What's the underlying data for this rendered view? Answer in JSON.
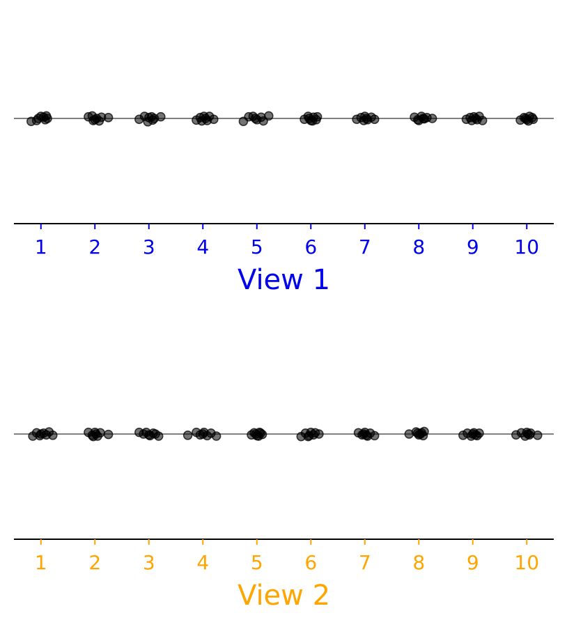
{
  "chart_data": [
    {
      "type": "scatter",
      "xlabel": "View 1",
      "tick_labels": [
        "1",
        "2",
        "3",
        "4",
        "5",
        "6",
        "7",
        "8",
        "9",
        "10"
      ],
      "xlim": [
        0.5,
        10.5
      ],
      "grid": false,
      "color": "#0000ee",
      "baseline_color": "#808080",
      "marker_color": "#000000",
      "points": [
        {
          "x": 0.95,
          "y": 0.0
        },
        {
          "x": 1.05,
          "y": 0.03
        },
        {
          "x": 1.1,
          "y": 0.06
        },
        {
          "x": 0.82,
          "y": -0.07
        },
        {
          "x": 0.92,
          "y": -0.05
        },
        {
          "x": 1.0,
          "y": 0.05
        },
        {
          "x": 1.08,
          "y": -0.03
        },
        {
          "x": 1.12,
          "y": 0.0
        },
        {
          "x": 1.88,
          "y": 0.04
        },
        {
          "x": 1.95,
          "y": 0.06
        },
        {
          "x": 2.0,
          "y": -0.03
        },
        {
          "x": 2.08,
          "y": -0.06
        },
        {
          "x": 2.12,
          "y": 0.03
        },
        {
          "x": 2.25,
          "y": 0.02
        },
        {
          "x": 2.03,
          "y": 0.0
        },
        {
          "x": 1.97,
          "y": -0.05
        },
        {
          "x": 2.82,
          "y": -0.02
        },
        {
          "x": 2.92,
          "y": 0.05
        },
        {
          "x": 2.98,
          "y": -0.08
        },
        {
          "x": 3.05,
          "y": 0.04
        },
        {
          "x": 3.1,
          "y": 0.0
        },
        {
          "x": 3.22,
          "y": 0.04
        },
        {
          "x": 3.0,
          "y": 0.02
        },
        {
          "x": 3.07,
          "y": -0.04
        },
        {
          "x": 3.88,
          "y": -0.04
        },
        {
          "x": 3.95,
          "y": 0.02
        },
        {
          "x": 4.02,
          "y": 0.05
        },
        {
          "x": 4.08,
          "y": -0.05
        },
        {
          "x": 4.12,
          "y": 0.05
        },
        {
          "x": 4.2,
          "y": -0.02
        },
        {
          "x": 3.98,
          "y": -0.06
        },
        {
          "x": 4.05,
          "y": 0.0
        },
        {
          "x": 4.75,
          "y": -0.07
        },
        {
          "x": 4.85,
          "y": 0.04
        },
        {
          "x": 4.93,
          "y": 0.05
        },
        {
          "x": 5.0,
          "y": -0.03
        },
        {
          "x": 5.08,
          "y": 0.03
        },
        {
          "x": 5.12,
          "y": -0.06
        },
        {
          "x": 5.22,
          "y": 0.06
        },
        {
          "x": 4.97,
          "y": 0.0
        },
        {
          "x": 5.88,
          "y": -0.02
        },
        {
          "x": 5.95,
          "y": 0.05
        },
        {
          "x": 6.0,
          "y": -0.05
        },
        {
          "x": 6.05,
          "y": 0.03
        },
        {
          "x": 6.1,
          "y": -0.03
        },
        {
          "x": 6.12,
          "y": 0.04
        },
        {
          "x": 5.97,
          "y": 0.0
        },
        {
          "x": 6.03,
          "y": -0.06
        },
        {
          "x": 6.85,
          "y": -0.02
        },
        {
          "x": 6.93,
          "y": 0.02
        },
        {
          "x": 7.0,
          "y": 0.05
        },
        {
          "x": 7.05,
          "y": -0.03
        },
        {
          "x": 7.12,
          "y": 0.03
        },
        {
          "x": 7.18,
          "y": -0.02
        },
        {
          "x": 6.98,
          "y": -0.05
        },
        {
          "x": 7.03,
          "y": 0.0
        },
        {
          "x": 7.92,
          "y": 0.03
        },
        {
          "x": 7.98,
          "y": -0.03
        },
        {
          "x": 8.05,
          "y": 0.05
        },
        {
          "x": 8.1,
          "y": -0.01
        },
        {
          "x": 8.15,
          "y": 0.02
        },
        {
          "x": 8.25,
          "y": 0.0
        },
        {
          "x": 8.0,
          "y": -0.05
        },
        {
          "x": 8.08,
          "y": 0.0
        },
        {
          "x": 8.88,
          "y": -0.02
        },
        {
          "x": 8.95,
          "y": 0.02
        },
        {
          "x": 9.02,
          "y": 0.04
        },
        {
          "x": 9.08,
          "y": -0.03
        },
        {
          "x": 9.12,
          "y": 0.05
        },
        {
          "x": 9.18,
          "y": -0.05
        },
        {
          "x": 8.98,
          "y": -0.05
        },
        {
          "x": 9.05,
          "y": 0.0
        },
        {
          "x": 9.88,
          "y": -0.04
        },
        {
          "x": 9.95,
          "y": 0.02
        },
        {
          "x": 10.0,
          "y": -0.03
        },
        {
          "x": 10.05,
          "y": 0.05
        },
        {
          "x": 10.1,
          "y": 0.02
        },
        {
          "x": 10.12,
          "y": -0.02
        },
        {
          "x": 9.98,
          "y": 0.0
        },
        {
          "x": 10.03,
          "y": -0.06
        }
      ]
    },
    {
      "type": "scatter",
      "xlabel": "View 2",
      "tick_labels": [
        "1",
        "2",
        "3",
        "4",
        "5",
        "6",
        "7",
        "8",
        "9",
        "10"
      ],
      "xlim": [
        0.5,
        10.5
      ],
      "grid": false,
      "color": "#ffa500",
      "baseline_color": "#808080",
      "marker_color": "#000000",
      "points": [
        {
          "x": 0.85,
          "y": -0.05
        },
        {
          "x": 0.92,
          "y": 0.03
        },
        {
          "x": 0.98,
          "y": -0.04
        },
        {
          "x": 1.05,
          "y": 0.02
        },
        {
          "x": 1.1,
          "y": -0.02
        },
        {
          "x": 1.15,
          "y": 0.05
        },
        {
          "x": 1.22,
          "y": -0.03
        },
        {
          "x": 1.0,
          "y": 0.0
        },
        {
          "x": 1.88,
          "y": 0.04
        },
        {
          "x": 1.95,
          "y": -0.03
        },
        {
          "x": 2.0,
          "y": 0.04
        },
        {
          "x": 2.05,
          "y": -0.05
        },
        {
          "x": 2.1,
          "y": 0.03
        },
        {
          "x": 2.25,
          "y": -0.01
        },
        {
          "x": 2.02,
          "y": 0.0
        },
        {
          "x": 1.97,
          "y": -0.06
        },
        {
          "x": 2.82,
          "y": 0.04
        },
        {
          "x": 2.9,
          "y": 0.0
        },
        {
          "x": 2.95,
          "y": 0.04
        },
        {
          "x": 3.02,
          "y": -0.04
        },
        {
          "x": 3.08,
          "y": 0.02
        },
        {
          "x": 3.18,
          "y": -0.05
        },
        {
          "x": 3.0,
          "y": -0.02
        },
        {
          "x": 3.12,
          "y": 0.0
        },
        {
          "x": 3.72,
          "y": -0.03
        },
        {
          "x": 3.88,
          "y": 0.04
        },
        {
          "x": 3.95,
          "y": -0.02
        },
        {
          "x": 4.02,
          "y": 0.04
        },
        {
          "x": 4.08,
          "y": -0.04
        },
        {
          "x": 4.15,
          "y": 0.02
        },
        {
          "x": 4.25,
          "y": -0.05
        },
        {
          "x": 4.0,
          "y": 0.0
        },
        {
          "x": 4.9,
          "y": -0.02
        },
        {
          "x": 4.95,
          "y": 0.03
        },
        {
          "x": 5.0,
          "y": -0.04
        },
        {
          "x": 5.05,
          "y": 0.04
        },
        {
          "x": 5.1,
          "y": -0.01
        },
        {
          "x": 4.98,
          "y": 0.0
        },
        {
          "x": 5.03,
          "y": -0.05
        },
        {
          "x": 5.07,
          "y": 0.02
        },
        {
          "x": 5.82,
          "y": -0.06
        },
        {
          "x": 5.9,
          "y": 0.02
        },
        {
          "x": 5.97,
          "y": -0.04
        },
        {
          "x": 6.0,
          "y": 0.04
        },
        {
          "x": 6.05,
          "y": -0.02
        },
        {
          "x": 6.15,
          "y": 0.0
        },
        {
          "x": 6.08,
          "y": 0.03
        },
        {
          "x": 5.95,
          "y": -0.06
        },
        {
          "x": 6.88,
          "y": 0.03
        },
        {
          "x": 6.95,
          "y": -0.02
        },
        {
          "x": 7.0,
          "y": 0.04
        },
        {
          "x": 7.05,
          "y": -0.05
        },
        {
          "x": 7.1,
          "y": 0.02
        },
        {
          "x": 7.18,
          "y": -0.04
        },
        {
          "x": 6.98,
          "y": 0.0
        },
        {
          "x": 7.03,
          "y": -0.03
        },
        {
          "x": 7.82,
          "y": 0.0
        },
        {
          "x": 7.95,
          "y": 0.05
        },
        {
          "x": 8.0,
          "y": -0.02
        },
        {
          "x": 8.05,
          "y": 0.03
        },
        {
          "x": 8.08,
          "y": -0.04
        },
        {
          "x": 8.1,
          "y": 0.06
        },
        {
          "x": 7.98,
          "y": 0.02
        },
        {
          "x": 8.03,
          "y": 0.0
        },
        {
          "x": 8.82,
          "y": -0.03
        },
        {
          "x": 8.9,
          "y": 0.02
        },
        {
          "x": 8.97,
          "y": -0.05
        },
        {
          "x": 9.02,
          "y": 0.03
        },
        {
          "x": 9.08,
          "y": -0.04
        },
        {
          "x": 9.12,
          "y": 0.02
        },
        {
          "x": 9.0,
          "y": 0.0
        },
        {
          "x": 9.05,
          "y": -0.02
        },
        {
          "x": 9.8,
          "y": -0.02
        },
        {
          "x": 9.9,
          "y": 0.03
        },
        {
          "x": 9.97,
          "y": -0.05
        },
        {
          "x": 10.0,
          "y": 0.04
        },
        {
          "x": 10.05,
          "y": -0.02
        },
        {
          "x": 10.2,
          "y": -0.03
        },
        {
          "x": 10.02,
          "y": 0.0
        },
        {
          "x": 10.07,
          "y": 0.02
        }
      ]
    }
  ]
}
